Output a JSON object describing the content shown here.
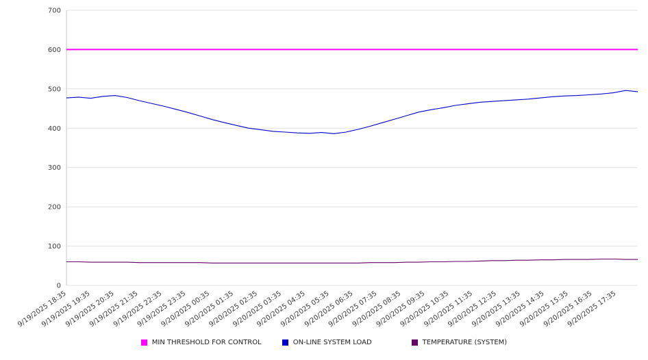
{
  "chart_data": {
    "type": "line",
    "title": "",
    "xlabel": "",
    "ylabel": "",
    "ylim": [
      0,
      700
    ],
    "y_ticks": [
      0,
      100,
      200,
      300,
      400,
      500,
      600,
      700
    ],
    "grid": "horizontal",
    "legend_position": "bottom",
    "x_tick_labels": [
      "9/19/2025 18:35",
      "9/19/2025 19:35",
      "9/19/2025 20:35",
      "9/19/2025 21:35",
      "9/19/2025 22:35",
      "9/19/2025 23:35",
      "9/20/2025 00:35",
      "9/20/2025 01:35",
      "9/20/2025 02:35",
      "9/20/2025 03:35",
      "9/20/2025 04:35",
      "9/20/2025 05:35",
      "9/20/2025 06:35",
      "9/20/2025 07:35",
      "9/20/2025 08:35",
      "9/20/2025 09:35",
      "9/20/2025 10:35",
      "9/20/2025 11:35",
      "9/20/2025 12:35",
      "9/20/2025 13:35",
      "9/20/2025 14:35",
      "9/20/2025 15:35",
      "9/20/2025 16:35",
      "9/20/2025 17:35"
    ],
    "series": [
      {
        "name": "MIN THRESHOLD FOR CONTROL",
        "color": "#ff00ff",
        "stroke_width": 2,
        "values": [
          600,
          600
        ]
      },
      {
        "name": "ON-LINE SYSTEM LOAD",
        "color": "#0000cc",
        "stroke_width": 1.1,
        "values": [
          477,
          479,
          476,
          481,
          483,
          478,
          470,
          463,
          456,
          448,
          440,
          431,
          422,
          414,
          407,
          400,
          396,
          392,
          390,
          388,
          387,
          389,
          386,
          390,
          397,
          405,
          414,
          423,
          432,
          441,
          447,
          452,
          458,
          462,
          466,
          468,
          470,
          472,
          474,
          477,
          480,
          482,
          483,
          485,
          487,
          490,
          496,
          493
        ]
      },
      {
        "name": "TEMPERATURE (SYSTEM)",
        "color": "#650065",
        "stroke_width": 1.1,
        "values": [
          60,
          60,
          59,
          59,
          59,
          59,
          58,
          58,
          58,
          58,
          58,
          58,
          57,
          57,
          57,
          57,
          57,
          57,
          57,
          57,
          57,
          57,
          57,
          57,
          57,
          58,
          58,
          58,
          59,
          59,
          60,
          60,
          61,
          61,
          62,
          63,
          63,
          64,
          64,
          65,
          65,
          66,
          66,
          66,
          67,
          67,
          66,
          66
        ]
      }
    ]
  },
  "colors": {
    "background": "#ffffff",
    "grid": "#e0e0e0",
    "axis": "#c8c8c8",
    "tick_text": "#3c3c3c"
  }
}
